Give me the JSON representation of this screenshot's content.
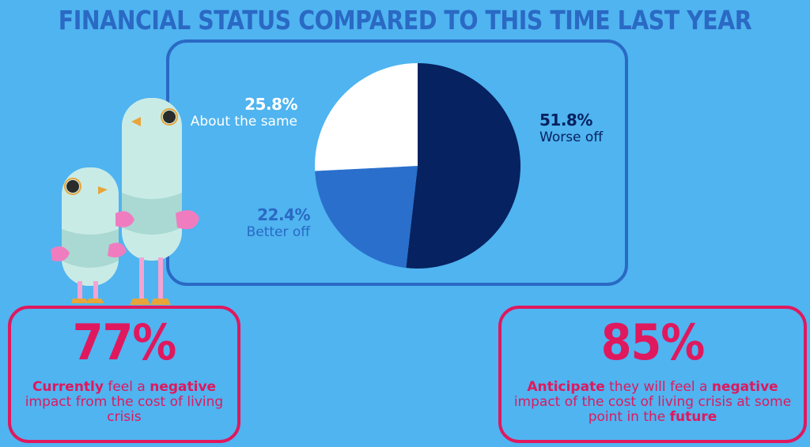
{
  "title": "FINANCIAL STATUS COMPARED TO THIS TIME LAST YEAR",
  "colors": {
    "background": "#4fb4f0",
    "accent_blue": "#2a69c4",
    "accent_pink": "#e0185e",
    "worse_off": "#062260",
    "better_off": "#2a6fcc",
    "about_same": "#ffffff"
  },
  "chart_data": {
    "type": "pie",
    "title": "FINANCIAL STATUS COMPARED TO THIS TIME LAST YEAR",
    "slices": [
      {
        "label": "Worse off",
        "value": 51.8,
        "display": "51.8%",
        "color": "#062260"
      },
      {
        "label": "Better off",
        "value": 22.4,
        "display": "22.4%",
        "color": "#2a6fcc"
      },
      {
        "label": "About the same",
        "value": 25.8,
        "display": "25.8%",
        "color": "#ffffff"
      }
    ]
  },
  "stats": {
    "current": {
      "value": "77%",
      "part1_bold": "Currently",
      "part2": " feel a ",
      "part3_bold": "negative",
      "part4": " impact from the cost of living crisis"
    },
    "future": {
      "value": "85%",
      "part1_bold": "Anticipate",
      "part2": " they will feel a ",
      "part3_bold": "negative",
      "part4": " impact of the cost of living crisis at some point in the ",
      "part5_bold": "future"
    }
  }
}
